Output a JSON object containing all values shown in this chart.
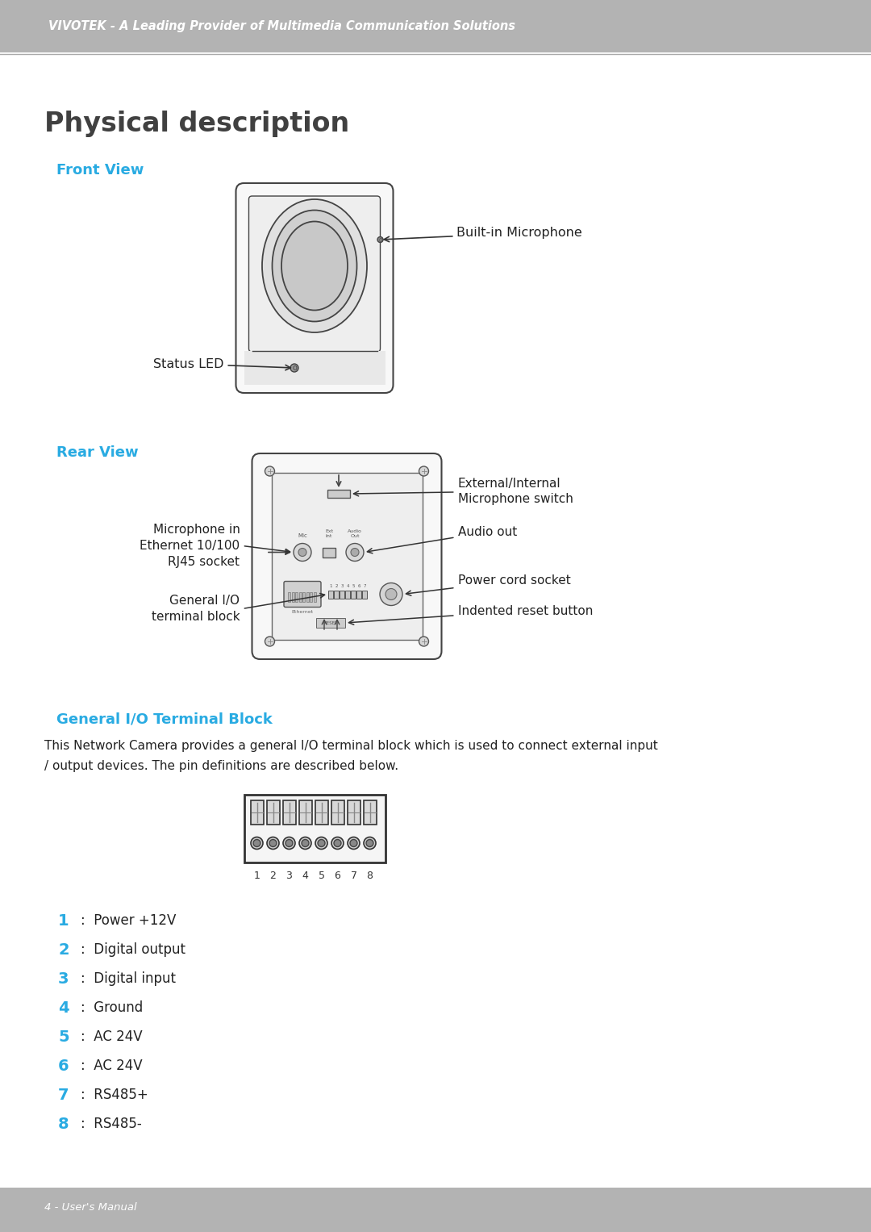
{
  "header_bg": "#b3b3b3",
  "header_text": "VIVOTEK - A Leading Provider of Multimedia Communication Solutions",
  "header_text_color": "#ffffff",
  "footer_bg": "#b3b3b3",
  "footer_text": "4 - User's Manual",
  "footer_text_color": "#ffffff",
  "page_bg": "#ffffff",
  "title": "Physical description",
  "title_color": "#404040",
  "section1": "Front View",
  "section2": "Rear View",
  "section3": "General I/O Terminal Block",
  "section_color": "#29abe2",
  "body_text_color": "#222222",
  "body_text_line1": "This Network Camera provides a general I/O terminal block which is used to connect external input",
  "body_text_line2": "/ output devices. The pin definitions are described below.",
  "pin_labels": [
    [
      "1",
      "Power +12V"
    ],
    [
      "2",
      "Digital output"
    ],
    [
      "3",
      "Digital input"
    ],
    [
      "4",
      "Ground"
    ],
    [
      "5",
      "AC 24V"
    ],
    [
      "6",
      "AC 24V"
    ],
    [
      "7",
      "RS485+"
    ],
    [
      "8",
      "RS485-"
    ]
  ],
  "number_color": "#29abe2",
  "line_color": "#aaaaaa",
  "diagram_edge": "#444444",
  "diagram_fill": "#f8f8f8",
  "diagram_inner": "#eeeeee"
}
